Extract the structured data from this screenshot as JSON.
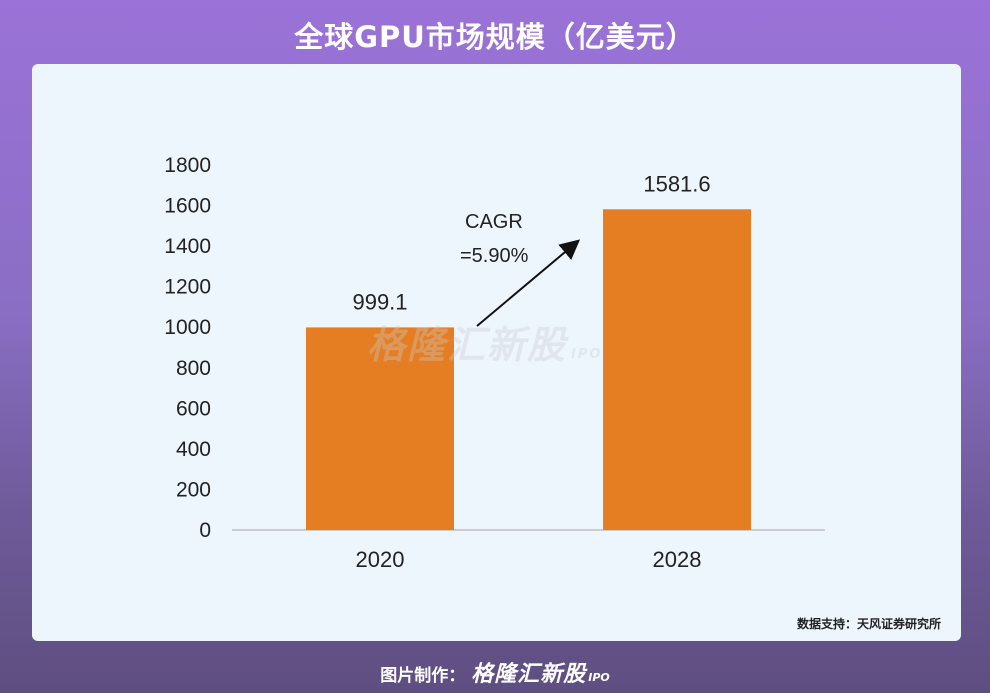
{
  "title": "全球GPU市场规模（亿美元）",
  "source": "数据支持：天风证券研究所",
  "footer": {
    "label": "图片制作：",
    "logo": "格隆汇新股",
    "ipo": "IPO"
  },
  "watermark": {
    "text": "格隆汇新股",
    "ipo": "IPO"
  },
  "colors": {
    "bar": "#e57e22",
    "axis": "#bfbfbf",
    "text": "#222222"
  },
  "chart_data": {
    "type": "bar",
    "categories": [
      "2020",
      "2028"
    ],
    "values": [
      999.1,
      1581.6
    ],
    "data_labels": [
      "999.1",
      "1581.6"
    ],
    "ylim": [
      0,
      1800
    ],
    "yticks": [
      0,
      200,
      400,
      600,
      800,
      1000,
      1200,
      1400,
      1600,
      1800
    ],
    "grid": false,
    "annotation": {
      "line1": "CAGR",
      "line2": "=5.90%"
    }
  }
}
